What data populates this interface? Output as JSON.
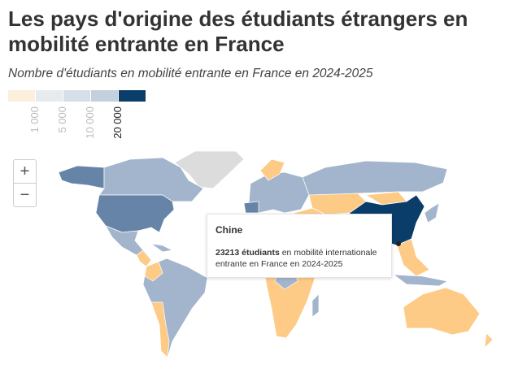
{
  "header": {
    "title": "Les pays d'origine des étudiants étrangers en mobilité entrante en France",
    "subtitle": "Nombre d'étudiants en mobilité entrante en France en 2024-2025"
  },
  "legend": {
    "colors": [
      "#fcefdc",
      "#e7ebf0",
      "#d6dee8",
      "#c3d0de",
      "#0b3d6b"
    ],
    "labels": [
      "1 000",
      "5 000",
      "10 000",
      "20 000"
    ]
  },
  "zoom": {
    "in": "+",
    "out": "−"
  },
  "tooltip": {
    "country": "Chine",
    "count": "23213 étudiants",
    "text": "en mobilité internationale entrante en France en 2024-2025"
  }
}
